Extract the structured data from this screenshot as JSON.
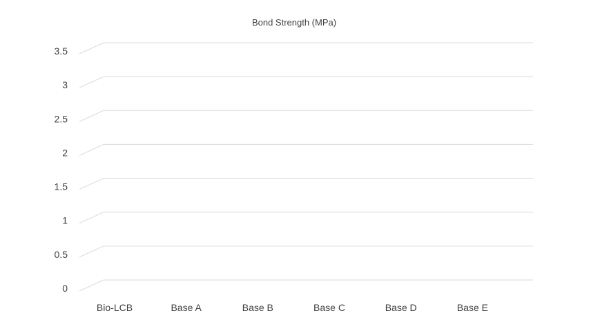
{
  "chart_data": {
    "type": "bar",
    "title": "Bond Strength (MPa)",
    "xlabel": "",
    "ylabel": "",
    "categories": [
      "Bio-LCB",
      "Base A",
      "Base B",
      "Base C",
      "Base D",
      "Base E"
    ],
    "yticks": [
      "0",
      "0.5",
      "1",
      "1.5",
      "2",
      "2.5",
      "3",
      "3.5"
    ],
    "ylim": [
      0,
      3.5
    ],
    "grid": true,
    "legend": "none",
    "grid_color": "#d9d9d9",
    "text_color": "#404040"
  }
}
